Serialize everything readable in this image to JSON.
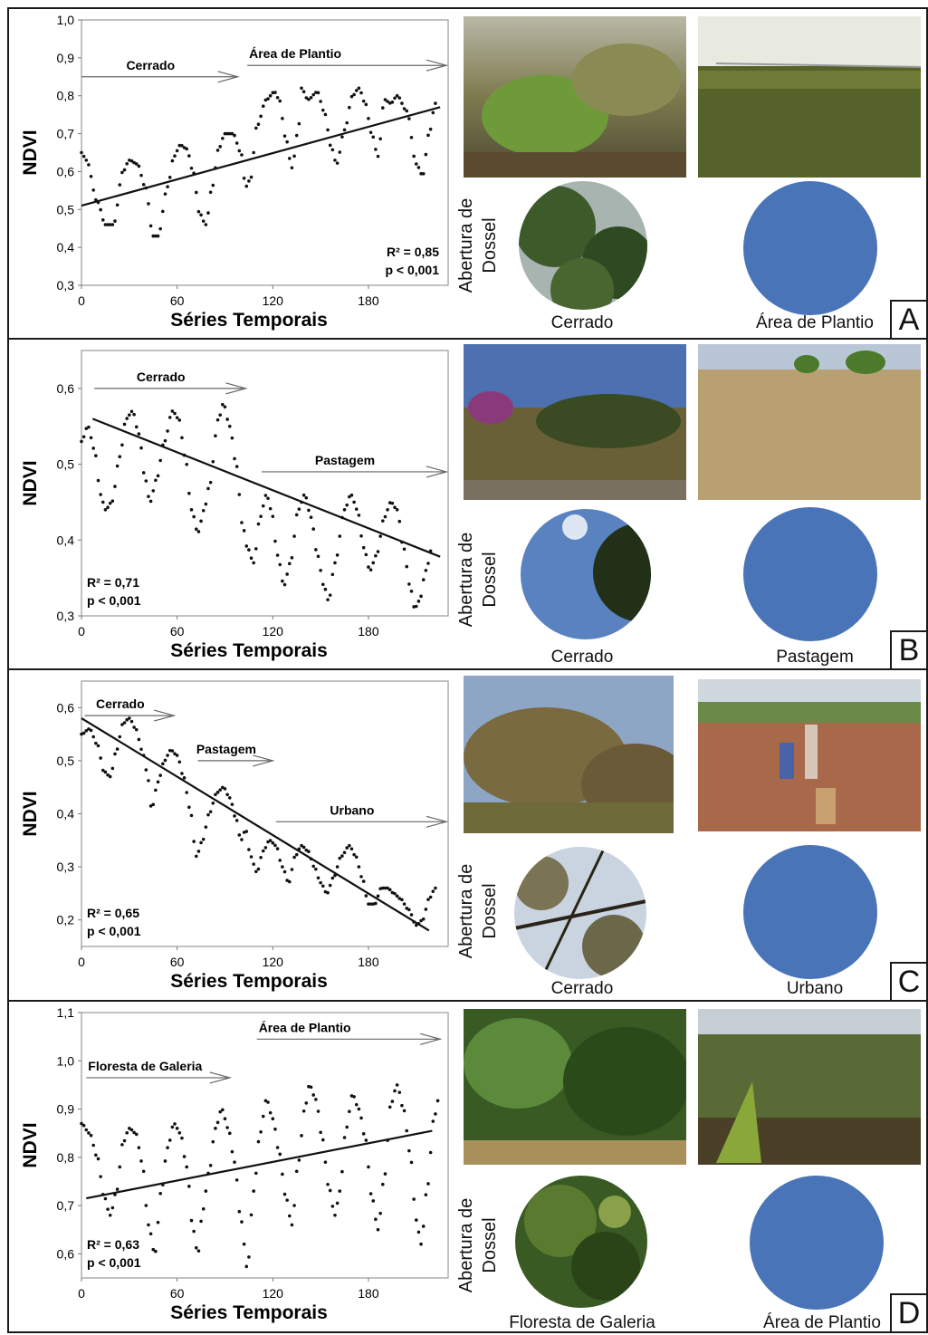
{
  "chart_data": [
    {
      "type": "scatter",
      "panel_letter": "A",
      "xlabel": "Séries Temporais",
      "ylabel": "NDVI",
      "xlim": [
        0,
        230
      ],
      "ylim": [
        0.3,
        1.0
      ],
      "xticks": [
        0,
        60,
        120,
        180
      ],
      "yticks": [
        0.3,
        0.4,
        0.5,
        0.6,
        0.7,
        0.8,
        0.9,
        1.0
      ],
      "ytick_labels": [
        "0,3",
        "0,4",
        "0,5",
        "0,6",
        "0,7",
        "0,8",
        "0,9",
        "1,0"
      ],
      "stats": [
        "R² = 0,85",
        "p < 0,001"
      ],
      "stats_pos": "bottom-right",
      "periods": [
        {
          "label": "Cerrado",
          "x_start": 0,
          "x_end": 98,
          "y": 0.85
        },
        {
          "label": "Área de Plantio",
          "x_start": 104,
          "x_end": 230,
          "y": 0.88
        }
      ],
      "trend": {
        "x": [
          0,
          225
        ],
        "y": [
          0.51,
          0.77
        ]
      },
      "series": {
        "anchors": [
          [
            0,
            0.65
          ],
          [
            3,
            0.63
          ],
          [
            10,
            0.52
          ],
          [
            15,
            0.46
          ],
          [
            20,
            0.46
          ],
          [
            26,
            0.6
          ],
          [
            30,
            0.63
          ],
          [
            35,
            0.62
          ],
          [
            40,
            0.56
          ],
          [
            45,
            0.43
          ],
          [
            48,
            0.43
          ],
          [
            54,
            0.56
          ],
          [
            58,
            0.64
          ],
          [
            62,
            0.67
          ],
          [
            66,
            0.66
          ],
          [
            70,
            0.6
          ],
          [
            74,
            0.49
          ],
          [
            78,
            0.46
          ],
          [
            82,
            0.56
          ],
          [
            86,
            0.66
          ],
          [
            90,
            0.7
          ],
          [
            95,
            0.7
          ],
          [
            100,
            0.65
          ],
          [
            103,
            0.56
          ],
          [
            106,
            0.58
          ],
          [
            110,
            0.72
          ],
          [
            116,
            0.79
          ],
          [
            121,
            0.81
          ],
          [
            124,
            0.79
          ],
          [
            128,
            0.69
          ],
          [
            132,
            0.61
          ],
          [
            136,
            0.71
          ],
          [
            138,
            0.82
          ],
          [
            142,
            0.79
          ],
          [
            148,
            0.81
          ],
          [
            152,
            0.76
          ],
          [
            157,
            0.66
          ],
          [
            160,
            0.62
          ],
          [
            165,
            0.71
          ],
          [
            170,
            0.8
          ],
          [
            174,
            0.82
          ],
          [
            178,
            0.78
          ],
          [
            182,
            0.7
          ],
          [
            186,
            0.64
          ],
          [
            190,
            0.79
          ],
          [
            194,
            0.78
          ],
          [
            198,
            0.8
          ],
          [
            204,
            0.76
          ],
          [
            210,
            0.62
          ],
          [
            214,
            0.59
          ],
          [
            218,
            0.7
          ],
          [
            222,
            0.78
          ]
        ]
      },
      "photo_captions": [
        "Cerrado",
        "Área de Plantio"
      ],
      "canopy_label": [
        "Abertura de",
        "Dossel"
      ]
    },
    {
      "type": "scatter",
      "panel_letter": "B",
      "xlabel": "Séries Temporais",
      "ylabel": "NDVI",
      "xlim": [
        0,
        230
      ],
      "ylim": [
        0.3,
        0.65
      ],
      "xticks": [
        0,
        60,
        120,
        180
      ],
      "yticks": [
        0.3,
        0.4,
        0.5,
        0.6
      ],
      "ytick_labels": [
        "0,3",
        "0,4",
        "0,5",
        "0,6"
      ],
      "stats": [
        "R² = 0,71",
        "p < 0,001"
      ],
      "stats_pos": "bottom-left",
      "periods": [
        {
          "label": "Cerrado",
          "x_start": 8,
          "x_end": 103,
          "y": 0.6
        },
        {
          "label": "Pastagem",
          "x_start": 113,
          "x_end": 230,
          "y": 0.49
        }
      ],
      "trend": {
        "x": [
          7,
          225
        ],
        "y": [
          0.56,
          0.378
        ]
      },
      "series": {
        "anchors": [
          [
            0,
            0.53
          ],
          [
            4,
            0.55
          ],
          [
            8,
            0.52
          ],
          [
            12,
            0.46
          ],
          [
            15,
            0.44
          ],
          [
            19,
            0.45
          ],
          [
            24,
            0.51
          ],
          [
            28,
            0.56
          ],
          [
            32,
            0.57
          ],
          [
            36,
            0.54
          ],
          [
            40,
            0.48
          ],
          [
            43,
            0.45
          ],
          [
            47,
            0.48
          ],
          [
            52,
            0.53
          ],
          [
            57,
            0.57
          ],
          [
            61,
            0.56
          ],
          [
            65,
            0.51
          ],
          [
            69,
            0.44
          ],
          [
            73,
            0.41
          ],
          [
            77,
            0.44
          ],
          [
            80,
            0.47
          ],
          [
            86,
            0.56
          ],
          [
            89,
            0.58
          ],
          [
            93,
            0.55
          ],
          [
            97,
            0.5
          ],
          [
            101,
            0.42
          ],
          [
            104,
            0.39
          ],
          [
            108,
            0.37
          ],
          [
            112,
            0.43
          ],
          [
            116,
            0.46
          ],
          [
            119,
            0.44
          ],
          [
            123,
            0.38
          ],
          [
            127,
            0.34
          ],
          [
            131,
            0.37
          ],
          [
            136,
            0.44
          ],
          [
            140,
            0.46
          ],
          [
            144,
            0.43
          ],
          [
            148,
            0.38
          ],
          [
            152,
            0.34
          ],
          [
            155,
            0.32
          ],
          [
            159,
            0.37
          ],
          [
            165,
            0.44
          ],
          [
            169,
            0.46
          ],
          [
            173,
            0.44
          ],
          [
            177,
            0.39
          ],
          [
            181,
            0.36
          ],
          [
            185,
            0.38
          ],
          [
            190,
            0.43
          ],
          [
            194,
            0.45
          ],
          [
            198,
            0.44
          ],
          [
            202,
            0.39
          ],
          [
            206,
            0.34
          ],
          [
            209,
            0.31
          ],
          [
            212,
            0.32
          ],
          [
            216,
            0.36
          ],
          [
            220,
            0.39
          ]
        ]
      },
      "photo_captions": [
        "Cerrado",
        "Pastagem"
      ],
      "canopy_label": [
        "Abertura de",
        "Dossel"
      ]
    },
    {
      "type": "scatter",
      "panel_letter": "C",
      "xlabel": "Séries Temporais",
      "ylabel": "NDVI",
      "xlim": [
        0,
        230
      ],
      "ylim": [
        0.15,
        0.65
      ],
      "xticks": [
        0,
        60,
        120,
        180
      ],
      "yticks": [
        0.2,
        0.3,
        0.4,
        0.5,
        0.6
      ],
      "ytick_labels": [
        "0,2",
        "0,3",
        "0,4",
        "0,5",
        "0,6"
      ],
      "stats": [
        "R² = 0,65",
        "p < 0,001"
      ],
      "stats_pos": "bottom-left",
      "periods": [
        {
          "label": "Cerrado",
          "x_start": 2,
          "x_end": 58,
          "y": 0.585
        },
        {
          "label": "Pastagem",
          "x_start": 73,
          "x_end": 120,
          "y": 0.5
        },
        {
          "label": "Urbano",
          "x_start": 122,
          "x_end": 230,
          "y": 0.385
        }
      ],
      "trend": {
        "x": [
          0,
          218
        ],
        "y": [
          0.58,
          0.18
        ]
      },
      "series": {
        "anchors": [
          [
            0,
            0.55
          ],
          [
            5,
            0.56
          ],
          [
            10,
            0.53
          ],
          [
            14,
            0.48
          ],
          [
            18,
            0.47
          ],
          [
            22,
            0.52
          ],
          [
            26,
            0.57
          ],
          [
            30,
            0.58
          ],
          [
            34,
            0.56
          ],
          [
            38,
            0.52
          ],
          [
            41,
            0.48
          ],
          [
            44,
            0.41
          ],
          [
            48,
            0.46
          ],
          [
            52,
            0.5
          ],
          [
            56,
            0.52
          ],
          [
            60,
            0.51
          ],
          [
            64,
            0.47
          ],
          [
            68,
            0.41
          ],
          [
            72,
            0.32
          ],
          [
            76,
            0.35
          ],
          [
            80,
            0.4
          ],
          [
            85,
            0.44
          ],
          [
            89,
            0.45
          ],
          [
            93,
            0.43
          ],
          [
            97,
            0.39
          ],
          [
            100,
            0.35
          ],
          [
            103,
            0.37
          ],
          [
            106,
            0.32
          ],
          [
            110,
            0.29
          ],
          [
            114,
            0.33
          ],
          [
            118,
            0.35
          ],
          [
            122,
            0.34
          ],
          [
            126,
            0.3
          ],
          [
            130,
            0.27
          ],
          [
            134,
            0.32
          ],
          [
            138,
            0.34
          ],
          [
            142,
            0.33
          ],
          [
            146,
            0.3
          ],
          [
            150,
            0.27
          ],
          [
            154,
            0.25
          ],
          [
            158,
            0.28
          ],
          [
            163,
            0.32
          ],
          [
            168,
            0.34
          ],
          [
            172,
            0.32
          ],
          [
            176,
            0.28
          ],
          [
            180,
            0.23
          ],
          [
            184,
            0.23
          ],
          [
            188,
            0.26
          ],
          [
            192,
            0.26
          ],
          [
            196,
            0.25
          ],
          [
            200,
            0.24
          ],
          [
            205,
            0.22
          ],
          [
            210,
            0.19
          ],
          [
            214,
            0.2
          ],
          [
            218,
            0.24
          ],
          [
            222,
            0.26
          ]
        ]
      },
      "photo_captions": [
        "Cerrado",
        "Urbano"
      ],
      "canopy_label": [
        "Abertura de",
        "Dossel"
      ]
    },
    {
      "type": "scatter",
      "panel_letter": "D",
      "xlabel": "Séries Temporais",
      "ylabel": "NDVI",
      "xlim": [
        0,
        230
      ],
      "ylim": [
        0.55,
        1.1
      ],
      "xticks": [
        0,
        60,
        120,
        180
      ],
      "yticks": [
        0.6,
        0.7,
        0.8,
        0.9,
        1.0,
        1.1
      ],
      "ytick_labels": [
        "0,6",
        "0,7",
        "0,8",
        "0,9",
        "1,0",
        "1,1"
      ],
      "stats": [
        "R² = 0,63",
        "p < 0,001"
      ],
      "stats_pos": "bottom-left",
      "periods": [
        {
          "label": "Floresta de Galeria",
          "x_start": 3,
          "x_end": 93,
          "y": 0.965
        },
        {
          "label": "Área de Plantio",
          "x_start": 110,
          "x_end": 225,
          "y": 1.045
        }
      ],
      "trend": {
        "x": [
          3,
          220
        ],
        "y": [
          0.715,
          0.855
        ]
      },
      "series": {
        "anchors": [
          [
            0,
            0.87
          ],
          [
            5,
            0.85
          ],
          [
            10,
            0.8
          ],
          [
            14,
            0.72
          ],
          [
            18,
            0.68
          ],
          [
            22,
            0.73
          ],
          [
            26,
            0.83
          ],
          [
            30,
            0.86
          ],
          [
            34,
            0.85
          ],
          [
            38,
            0.79
          ],
          [
            42,
            0.66
          ],
          [
            46,
            0.6
          ],
          [
            50,
            0.73
          ],
          [
            54,
            0.82
          ],
          [
            58,
            0.87
          ],
          [
            62,
            0.85
          ],
          [
            66,
            0.78
          ],
          [
            70,
            0.65
          ],
          [
            73,
            0.6
          ],
          [
            76,
            0.69
          ],
          [
            80,
            0.77
          ],
          [
            84,
            0.86
          ],
          [
            88,
            0.9
          ],
          [
            92,
            0.86
          ],
          [
            96,
            0.79
          ],
          [
            100,
            0.67
          ],
          [
            104,
            0.57
          ],
          [
            108,
            0.73
          ],
          [
            112,
            0.85
          ],
          [
            116,
            0.92
          ],
          [
            120,
            0.88
          ],
          [
            124,
            0.81
          ],
          [
            128,
            0.72
          ],
          [
            132,
            0.66
          ],
          [
            136,
            0.79
          ],
          [
            140,
            0.9
          ],
          [
            143,
            0.95
          ],
          [
            147,
            0.92
          ],
          [
            151,
            0.84
          ],
          [
            155,
            0.74
          ],
          [
            159,
            0.68
          ],
          [
            162,
            0.73
          ],
          [
            166,
            0.86
          ],
          [
            170,
            0.93
          ],
          [
            174,
            0.9
          ],
          [
            178,
            0.84
          ],
          [
            182,
            0.72
          ],
          [
            186,
            0.65
          ],
          [
            190,
            0.76
          ],
          [
            194,
            0.91
          ],
          [
            198,
            0.95
          ],
          [
            202,
            0.9
          ],
          [
            206,
            0.81
          ],
          [
            210,
            0.67
          ],
          [
            213,
            0.62
          ],
          [
            217,
            0.74
          ],
          [
            221,
            0.88
          ],
          [
            224,
            0.92
          ]
        ]
      },
      "photo_captions": [
        "Floresta de Galeria",
        "Área de Plantio"
      ],
      "canopy_label": [
        "Abertura de",
        "Dossel"
      ]
    }
  ],
  "colors": {
    "canopy_blue": "#4a74b8",
    "axis": "#555555",
    "text": "#111111"
  }
}
